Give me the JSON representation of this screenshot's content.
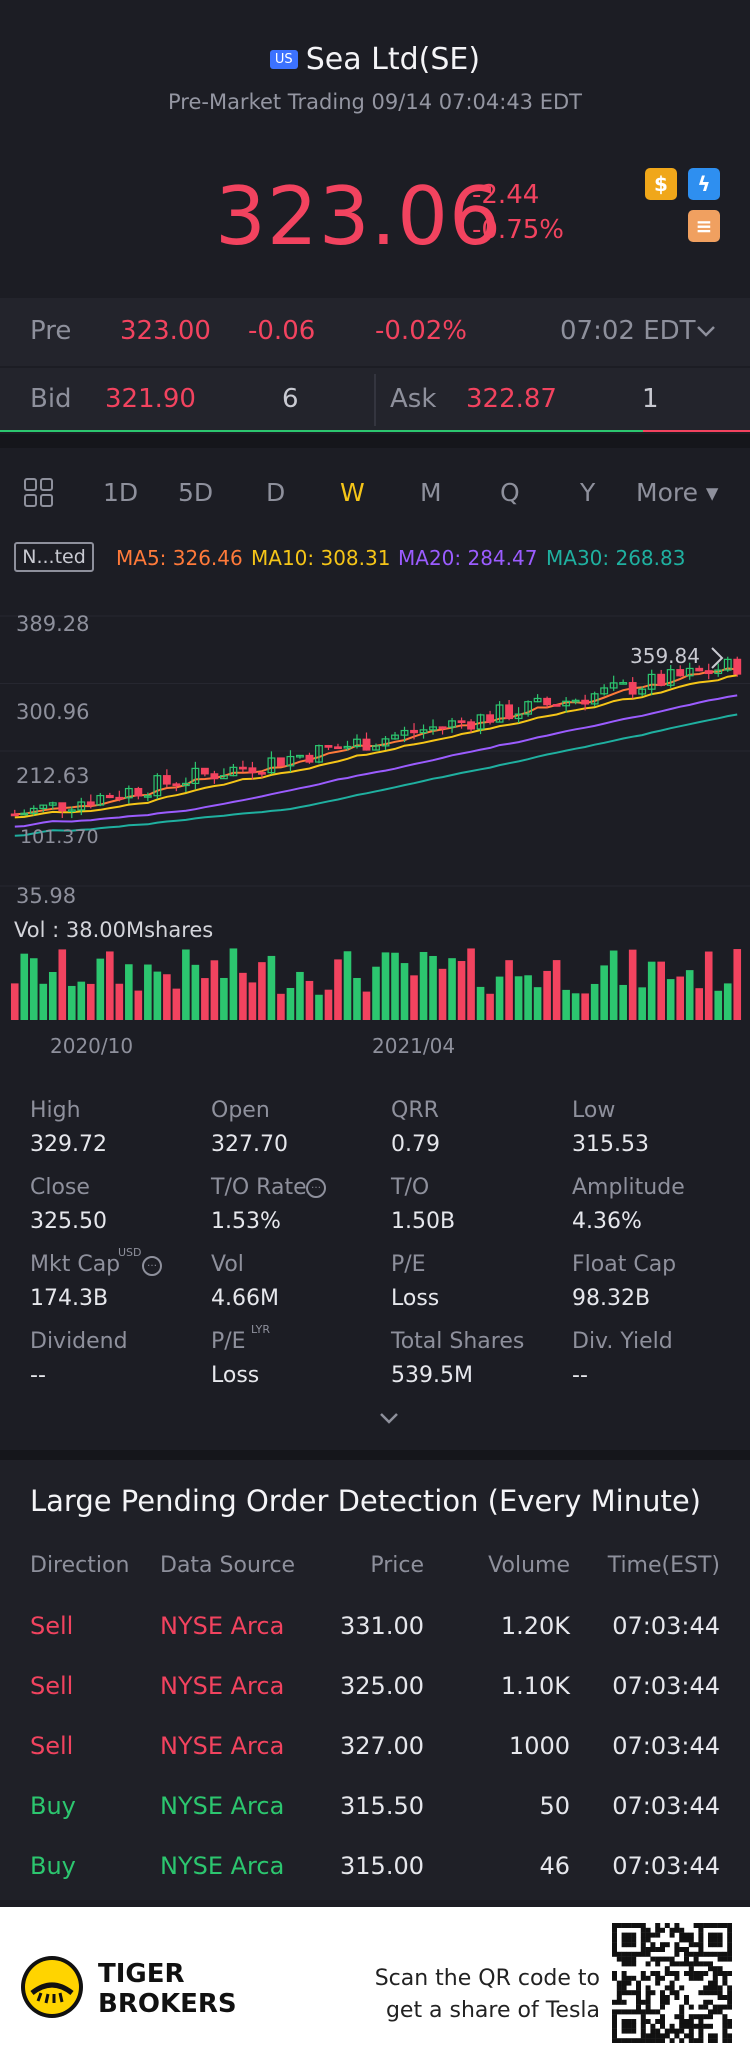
{
  "header": {
    "market_badge": "US",
    "title": "Sea Ltd(SE)",
    "subtitle": "Pre-Market Trading 09/14 07:04:43 EDT",
    "price": "323.06",
    "change": "-2.44",
    "change_pct": "-0.75%",
    "chips": [
      "dollar-icon",
      "lightning-icon",
      "layers-icon"
    ]
  },
  "pre_row": {
    "label": "Pre",
    "price": "323.00",
    "change": "-0.06",
    "change_pct": "-0.02%",
    "time": "07:02 EDT"
  },
  "bid_ask": {
    "bid_label": "Bid",
    "bid_price": "321.90",
    "bid_size": "6",
    "ask_label": "Ask",
    "ask_price": "322.87",
    "ask_size": "1",
    "bid_ratio": 0.857
  },
  "tabs": {
    "items": [
      "1D",
      "5D",
      "D",
      "W",
      "M",
      "Q",
      "Y",
      "More ▾"
    ],
    "active": "W"
  },
  "indicators": {
    "selector": "N...ted",
    "ma5": "MA5: 326.46",
    "ma10": "MA10: 308.31",
    "ma20": "MA20: 284.47",
    "ma30": "MA30: 268.83"
  },
  "chart_data": {
    "type": "candlestick",
    "ytick_labels": [
      "389.28",
      "300.96",
      "212.63",
      "35.98"
    ],
    "left_marker": "101.370",
    "high_marker": "359.84",
    "volume_label": "Vol  : 38.00Mshares",
    "xtick_labels": [
      "2020/10",
      "2021/04"
    ],
    "colors": {
      "up": "#2cc66f",
      "down": "#f2435f",
      "ma5": "#ff7a3a",
      "ma10": "#f5c518",
      "ma20": "#9b5cff",
      "ma30": "#1fb0a0"
    },
    "weeks": 77,
    "close_start": 130,
    "close_end": 325,
    "volume_bars_count": 77
  },
  "stats": [
    {
      "label": "High",
      "value": "329.72"
    },
    {
      "label": "Open",
      "value": "327.70"
    },
    {
      "label": "QRR",
      "value": "0.79"
    },
    {
      "label": "Low",
      "value": "315.53"
    },
    {
      "label": "Close",
      "value": "325.50"
    },
    {
      "label": "T/O Rate",
      "value": "1.53%"
    },
    {
      "label": "T/O",
      "value": "1.50B"
    },
    {
      "label": "Amplitude",
      "value": "4.36%"
    },
    {
      "label": "Mkt Cap",
      "value": "174.3B",
      "sup": "USD"
    },
    {
      "label": "Vol",
      "value": "4.66M"
    },
    {
      "label": "P/E",
      "value": "Loss"
    },
    {
      "label": "Float Cap",
      "value": "98.32B"
    },
    {
      "label": "Dividend",
      "value": "--"
    },
    {
      "label": "P/E",
      "value": "Loss",
      "sup": "LYR"
    },
    {
      "label": "Total Shares",
      "value": "539.5M"
    },
    {
      "label": "Div. Yield",
      "value": "--"
    }
  ],
  "orders": {
    "title": "Large Pending Order Detection (Every Minute)",
    "headers": [
      "Direction",
      "Data Source",
      "Price",
      "Volume",
      "Time(EST)"
    ],
    "rows": [
      {
        "direction": "Sell",
        "source": "NYSE Arca",
        "price": "331.00",
        "volume": "1.20K",
        "time": "07:03:44"
      },
      {
        "direction": "Sell",
        "source": "NYSE Arca",
        "price": "325.00",
        "volume": "1.10K",
        "time": "07:03:44"
      },
      {
        "direction": "Sell",
        "source": "NYSE Arca",
        "price": "327.00",
        "volume": "1000",
        "time": "07:03:44"
      },
      {
        "direction": "Buy",
        "source": "NYSE Arca",
        "price": "315.50",
        "volume": "50",
        "time": "07:03:44"
      },
      {
        "direction": "Buy",
        "source": "NYSE Arca",
        "price": "315.00",
        "volume": "46",
        "time": "07:03:44"
      }
    ]
  },
  "footer": {
    "brand_line1": "TIGER",
    "brand_line2": "BROKERS",
    "cta_line1": "Scan the QR code to",
    "cta_line2": "get a share of Tesla"
  }
}
